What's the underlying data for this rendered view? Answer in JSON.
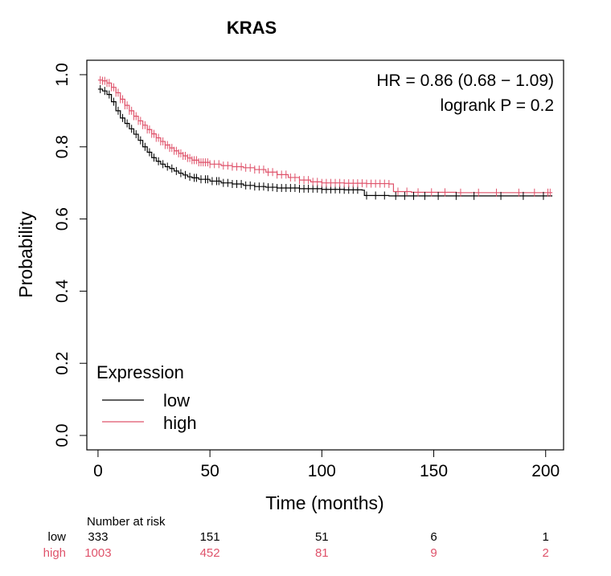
{
  "chart_data": {
    "type": "line",
    "chart_kind": "kaplan-meier",
    "title": "KRAS",
    "xlabel": "Time (months)",
    "ylabel": "Probability",
    "xlim": [
      -5,
      208
    ],
    "ylim": [
      -0.04,
      1.04
    ],
    "x_ticks": [
      0,
      50,
      100,
      150,
      200
    ],
    "y_ticks": [
      0.0,
      0.2,
      0.4,
      0.6,
      0.8,
      1.0
    ],
    "x_tick_labels": [
      "0",
      "50",
      "100",
      "150",
      "200"
    ],
    "y_tick_labels": [
      "0.0",
      "0.2",
      "0.4",
      "0.6",
      "0.8",
      "1.0"
    ],
    "stats": {
      "hr": "HR = 0.86 (0.68 − 1.09)",
      "logrank": "logrank P = 0.2"
    },
    "legend": {
      "title": "Expression",
      "position": "bottom-left",
      "entries": [
        "low",
        "high"
      ]
    },
    "series": [
      {
        "name": "low",
        "color": "#000000",
        "points": [
          [
            0,
            0.96
          ],
          [
            2,
            0.955
          ],
          [
            4,
            0.945
          ],
          [
            6,
            0.925
          ],
          [
            8,
            0.9
          ],
          [
            10,
            0.88
          ],
          [
            12,
            0.865
          ],
          [
            14,
            0.85
          ],
          [
            16,
            0.835
          ],
          [
            18,
            0.818
          ],
          [
            20,
            0.8
          ],
          [
            22,
            0.785
          ],
          [
            24,
            0.77
          ],
          [
            26,
            0.76
          ],
          [
            28,
            0.752
          ],
          [
            30,
            0.745
          ],
          [
            32,
            0.74
          ],
          [
            34,
            0.733
          ],
          [
            36,
            0.727
          ],
          [
            38,
            0.722
          ],
          [
            40,
            0.717
          ],
          [
            42,
            0.714
          ],
          [
            45,
            0.71
          ],
          [
            50,
            0.705
          ],
          [
            55,
            0.7
          ],
          [
            60,
            0.697
          ],
          [
            65,
            0.693
          ],
          [
            70,
            0.69
          ],
          [
            75,
            0.688
          ],
          [
            80,
            0.686
          ],
          [
            90,
            0.684
          ],
          [
            100,
            0.682
          ],
          [
            110,
            0.681
          ],
          [
            118,
            0.68
          ],
          [
            119,
            0.665
          ],
          [
            130,
            0.664
          ],
          [
            150,
            0.664
          ],
          [
            203,
            0.664
          ]
        ],
        "censor_times": [
          1,
          3,
          5,
          7,
          9,
          11,
          13,
          15,
          17,
          19,
          21,
          23,
          25,
          27,
          29,
          31,
          33,
          35,
          37,
          39,
          41,
          43,
          44,
          46,
          48,
          49,
          51,
          53,
          54,
          56,
          58,
          60,
          62,
          64,
          66,
          68,
          70,
          72,
          74,
          76,
          78,
          80,
          82,
          84,
          86,
          88,
          90,
          92,
          94,
          96,
          98,
          100,
          102,
          104,
          106,
          108,
          110,
          112,
          114,
          116,
          120,
          124,
          128,
          133,
          137,
          141,
          146,
          152,
          160,
          168,
          180,
          190,
          199
        ]
      },
      {
        "name": "high",
        "color": "#df536b",
        "points": [
          [
            0,
            0.985
          ],
          [
            2,
            0.983
          ],
          [
            4,
            0.977
          ],
          [
            6,
            0.965
          ],
          [
            8,
            0.95
          ],
          [
            10,
            0.932
          ],
          [
            12,
            0.915
          ],
          [
            14,
            0.9
          ],
          [
            16,
            0.885
          ],
          [
            18,
            0.872
          ],
          [
            20,
            0.86
          ],
          [
            22,
            0.848
          ],
          [
            24,
            0.836
          ],
          [
            26,
            0.825
          ],
          [
            28,
            0.815
          ],
          [
            30,
            0.805
          ],
          [
            32,
            0.797
          ],
          [
            34,
            0.789
          ],
          [
            36,
            0.782
          ],
          [
            38,
            0.775
          ],
          [
            40,
            0.769
          ],
          [
            42,
            0.763
          ],
          [
            45,
            0.757
          ],
          [
            50,
            0.752
          ],
          [
            55,
            0.748
          ],
          [
            60,
            0.745
          ],
          [
            65,
            0.742
          ],
          [
            70,
            0.737
          ],
          [
            75,
            0.73
          ],
          [
            80,
            0.723
          ],
          [
            85,
            0.715
          ],
          [
            90,
            0.708
          ],
          [
            95,
            0.703
          ],
          [
            100,
            0.7
          ],
          [
            110,
            0.699
          ],
          [
            120,
            0.698
          ],
          [
            130,
            0.697
          ],
          [
            132,
            0.676
          ],
          [
            140,
            0.674
          ],
          [
            160,
            0.673
          ],
          [
            203,
            0.673
          ]
        ],
        "censor_times": [
          1,
          2,
          3,
          4,
          5,
          6,
          7,
          8,
          9,
          10,
          11,
          12,
          13,
          14,
          15,
          16,
          17,
          18,
          19,
          20,
          21,
          22,
          23,
          24,
          25,
          26,
          27,
          28,
          29,
          30,
          31,
          32,
          33,
          34,
          35,
          36,
          37,
          38,
          39,
          40,
          41,
          42,
          43,
          44,
          45,
          46,
          47,
          48,
          49,
          50,
          52,
          54,
          56,
          58,
          60,
          62,
          64,
          66,
          68,
          70,
          72,
          74,
          76,
          78,
          80,
          82,
          84,
          86,
          88,
          90,
          92,
          94,
          96,
          98,
          100,
          102,
          104,
          106,
          108,
          110,
          112,
          114,
          116,
          118,
          120,
          122,
          124,
          126,
          128,
          130,
          134,
          138,
          143,
          149,
          155,
          162,
          170,
          178,
          188,
          195,
          201,
          202
        ]
      }
    ],
    "risk_table": {
      "header": "Number at risk",
      "times": [
        0,
        50,
        100,
        150,
        200
      ],
      "rows": [
        {
          "label": "low",
          "color": "#000000",
          "counts": [
            "333",
            "151",
            "51",
            "6",
            "1"
          ]
        },
        {
          "label": "high",
          "color": "#df536b",
          "counts": [
            "1003",
            "452",
            "81",
            "9",
            "2"
          ]
        }
      ]
    }
  }
}
